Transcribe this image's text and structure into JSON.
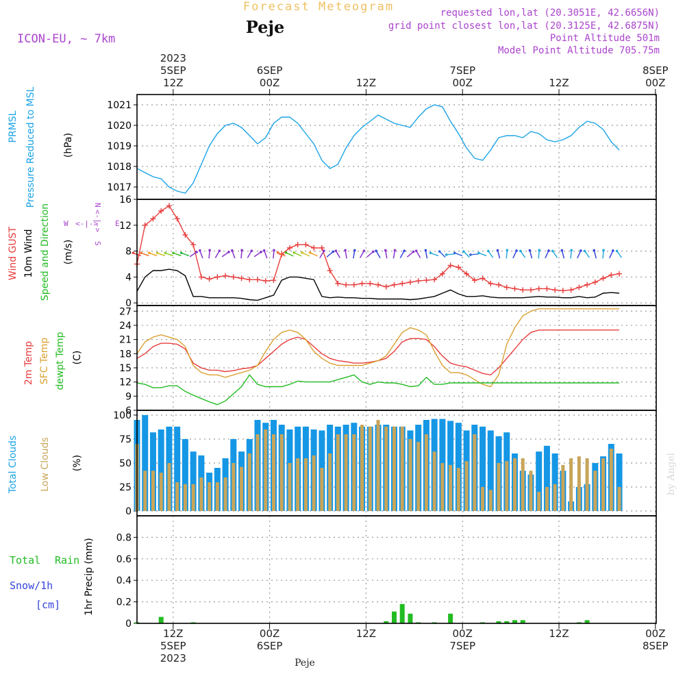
{
  "header": {
    "super_title": "Forecast Meteogram",
    "location": "Peje",
    "model": "ICON-EU, ~ 7km",
    "requested": "requested lon,lat (20.3051E, 42.6656N)",
    "grid_point": "grid point closest lon,lat (20.3125E, 42.6875N)",
    "point_alt": "Point Altitude 501m",
    "model_alt": "Model Point Altitude 705.75m",
    "footer_location": "Peje",
    "credit": "by Angel"
  },
  "time_axis": {
    "hours_start": 0,
    "hours_end": 60,
    "ticks": [
      {
        "hour": 4.5,
        "top": [
          "2023",
          "5SEP",
          "12Z"
        ],
        "bottom": [
          "12Z",
          "5SEP",
          "2023"
        ]
      },
      {
        "hour": 16.5,
        "top": [
          "6SEP",
          "00Z"
        ],
        "bottom": [
          "00Z",
          "6SEP"
        ]
      },
      {
        "hour": 28.5,
        "top": [
          "12Z"
        ],
        "bottom": [
          "12Z"
        ]
      },
      {
        "hour": 40.5,
        "top": [
          "7SEP",
          "00Z"
        ],
        "bottom": [
          "00Z",
          "7SEP"
        ]
      },
      {
        "hour": 52.5,
        "top": [
          "12Z"
        ],
        "bottom": [
          "12Z"
        ]
      },
      {
        "hour": 64.5,
        "top": [
          "8SEP",
          "00Z"
        ],
        "bottom": [
          "00Z",
          "8SEP"
        ]
      }
    ]
  },
  "labels": {
    "p_prmsl": "PRMSL",
    "p_pressure": "Pressure Reduced to MSL",
    "p_unit": "(hPa)",
    "w_gust": "Wind GUST",
    "w_10m": "10m Wind",
    "w_speed": "Speed and Direction",
    "w_unit": "(m/s)",
    "compass_w": "W",
    "compass_e": "E",
    "compass_n": "N",
    "compass_s": "S",
    "t_2m": "2m Temp",
    "t_sfc": "SFC Temp",
    "t_dew": "dewpt Temp",
    "t_unit": "(C)",
    "c_total": "Total Clouds",
    "c_low": "Low Clouds",
    "c_unit": "(%)",
    "r_total": "Total",
    "r_rain": "Rain",
    "r_snow": "Snow/1h",
    "r_cm": "[cm]",
    "r_unit": "1hr Precip (mm)"
  },
  "colors": {
    "pressure": "#1aa3e6",
    "gust": "#e83c3c",
    "wind": "#000000",
    "t2m": "#e83c3c",
    "sfc": "#daa030",
    "dew": "#22bb22",
    "total_cloud": "#1597e5",
    "low_cloud": "#c8a55a",
    "rain": "#22bb22",
    "snow": "#3344dd",
    "header_purple": "#aa44cc",
    "super_title": "#f0c060"
  },
  "chart_data": [
    {
      "type": "line",
      "title": "PRMSL Pressure Reduced to MSL",
      "ylabel": "(hPa)",
      "ylim": [
        1016.4,
        1021.5
      ],
      "yticks": [
        1017,
        1018,
        1019,
        1020,
        1021
      ],
      "x_hours": [
        0,
        1,
        2,
        3,
        4,
        5,
        6,
        7,
        8,
        9,
        10,
        11,
        12,
        13,
        14,
        15,
        16,
        17,
        18,
        19,
        20,
        21,
        22,
        23,
        24,
        25,
        26,
        27,
        28,
        29,
        30,
        31,
        32,
        33,
        34,
        35,
        36,
        37,
        38,
        39,
        40,
        41,
        42,
        43,
        44,
        45,
        46,
        47,
        48,
        49,
        50,
        51,
        52,
        53,
        54,
        55,
        56,
        57,
        58,
        59,
        60
      ],
      "series": [
        {
          "values": [
            1017.9,
            1017.7,
            1017.5,
            1017.4,
            1017.0,
            1016.8,
            1016.7,
            1017.2,
            1018.1,
            1019.0,
            1019.6,
            1020.0,
            1020.1,
            1019.9,
            1019.5,
            1019.1,
            1019.4,
            1020.1,
            1020.4,
            1020.4,
            1020.1,
            1019.6,
            1019.1,
            1018.3,
            1017.9,
            1018.1,
            1018.9,
            1019.5,
            1019.9,
            1020.2,
            1020.5,
            1020.3,
            1020.1,
            1020.0,
            1019.9,
            1020.4,
            1020.8,
            1021.0,
            1020.9,
            1020.2,
            1019.6,
            1018.9,
            1018.4,
            1018.3,
            1018.8,
            1019.4,
            1019.5,
            1019.5,
            1019.4,
            1019.7,
            1019.6,
            1019.3,
            1019.2,
            1019.3,
            1019.5,
            1019.9,
            1020.2,
            1020.1,
            1019.8,
            1019.2,
            1018.8
          ]
        }
      ]
    },
    {
      "type": "line",
      "title": "Wind GUST / 10m Wind Speed and Direction",
      "ylabel": "(m/s)",
      "ylim": [
        -0.4,
        16
      ],
      "yticks": [
        0,
        4,
        8,
        12,
        16
      ],
      "x_hours": [
        0,
        1,
        2,
        3,
        4,
        5,
        6,
        7,
        8,
        9,
        10,
        11,
        12,
        13,
        14,
        15,
        16,
        17,
        18,
        19,
        20,
        21,
        22,
        23,
        24,
        25,
        26,
        27,
        28,
        29,
        30,
        31,
        32,
        33,
        34,
        35,
        36,
        37,
        38,
        39,
        40,
        41,
        42,
        43,
        44,
        45,
        46,
        47,
        48,
        49,
        50,
        51,
        52,
        53,
        54,
        55,
        56,
        57,
        58,
        59,
        60
      ],
      "series": [
        {
          "name": "Wind GUST",
          "values": [
            6.0,
            12.0,
            13.0,
            14.2,
            15.0,
            13.0,
            10.5,
            9.0,
            4.0,
            3.7,
            4.0,
            4.2,
            4.0,
            3.8,
            3.6,
            3.6,
            3.4,
            3.5,
            7.5,
            8.5,
            9.0,
            9.0,
            8.5,
            8.5,
            5.0,
            3.0,
            2.8,
            2.8,
            3.0,
            3.0,
            2.8,
            2.5,
            2.8,
            3.0,
            3.2,
            3.4,
            3.5,
            3.6,
            4.5,
            5.8,
            5.5,
            4.5,
            3.5,
            3.8,
            3.0,
            2.8,
            2.4,
            2.2,
            2.0,
            2.0,
            2.2,
            2.2,
            2.0,
            1.9,
            2.0,
            2.4,
            2.8,
            3.2,
            3.8,
            4.3,
            4.5
          ]
        },
        {
          "name": "10m Wind",
          "values": [
            1.8,
            4.0,
            5.0,
            5.0,
            5.2,
            5.0,
            4.2,
            1.0,
            1.0,
            0.8,
            0.8,
            0.8,
            0.8,
            0.7,
            0.5,
            0.4,
            0.8,
            1.2,
            3.5,
            4.0,
            4.0,
            3.8,
            3.6,
            1.0,
            0.8,
            0.9,
            0.8,
            0.8,
            0.7,
            0.7,
            0.6,
            0.6,
            0.6,
            0.6,
            0.5,
            0.6,
            0.8,
            1.0,
            1.5,
            2.0,
            1.4,
            1.0,
            1.0,
            1.1,
            0.9,
            0.8,
            0.8,
            0.8,
            0.8,
            0.9,
            1.0,
            0.9,
            0.9,
            0.8,
            0.8,
            1.0,
            0.8,
            0.9,
            1.5,
            1.6,
            1.5
          ]
        }
      ]
    },
    {
      "type": "line",
      "title": "2m Temp / SFC Temp / dewpt Temp",
      "ylabel": "(C)",
      "ylim": [
        6,
        28.2
      ],
      "yticks": [
        6,
        9,
        12,
        15,
        18,
        21,
        24,
        27
      ],
      "x_hours": [
        0,
        1,
        2,
        3,
        4,
        5,
        6,
        7,
        8,
        9,
        10,
        11,
        12,
        13,
        14,
        15,
        16,
        17,
        18,
        19,
        20,
        21,
        22,
        23,
        24,
        25,
        26,
        27,
        28,
        29,
        30,
        31,
        32,
        33,
        34,
        35,
        36,
        37,
        38,
        39,
        40,
        41,
        42,
        43,
        44,
        45,
        46,
        47,
        48,
        49,
        50,
        51,
        52,
        53,
        54,
        55,
        56,
        57,
        58,
        59,
        60
      ],
      "series": [
        {
          "name": "2m Temp",
          "values": [
            17.0,
            18.0,
            19.5,
            20.2,
            20.2,
            20.0,
            19.0,
            16.0,
            15.0,
            14.5,
            14.5,
            14.2,
            14.4,
            14.8,
            15.0,
            15.5,
            17.0,
            18.5,
            20.0,
            21.0,
            21.5,
            21.0,
            19.5,
            18.0,
            17.0,
            16.5,
            16.3,
            16.0,
            16.0,
            16.2,
            16.5,
            17.0,
            18.5,
            20.5,
            21.2,
            21.2,
            21.0,
            19.5,
            17.5,
            16.0,
            15.5,
            15.2,
            14.5,
            13.8,
            13.5,
            15.0,
            17.0,
            19.0,
            21.0,
            22.5,
            23.0,
            23.0,
            23.0,
            23.0,
            23.0,
            23.0,
            23.0,
            23.0,
            23.0,
            23.0,
            23.0
          ]
        },
        {
          "name": "SFC Temp",
          "values": [
            18.0,
            20.5,
            21.5,
            22.0,
            21.5,
            21.0,
            19.5,
            15.5,
            14.0,
            13.5,
            13.5,
            13.0,
            13.5,
            14.0,
            14.5,
            15.5,
            18.5,
            21.0,
            22.5,
            23.0,
            22.5,
            21.0,
            18.5,
            17.0,
            16.0,
            15.5,
            15.5,
            15.5,
            15.5,
            16.0,
            16.5,
            17.5,
            20.0,
            22.5,
            23.5,
            23.0,
            22.0,
            18.5,
            15.5,
            14.0,
            14.0,
            13.5,
            12.5,
            11.5,
            11.0,
            13.5,
            20.0,
            23.5,
            26.0,
            27.0,
            27.5,
            27.5,
            27.5,
            27.5,
            27.5,
            27.5,
            27.5,
            27.5,
            27.5,
            27.5,
            27.5
          ]
        },
        {
          "name": "dewpt Temp",
          "values": [
            11.8,
            11.5,
            10.8,
            10.8,
            11.2,
            11.2,
            10.0,
            9.2,
            8.5,
            7.8,
            7.2,
            8.0,
            9.5,
            11.0,
            13.5,
            11.5,
            11.0,
            11.0,
            11.0,
            11.5,
            12.2,
            12.0,
            12.0,
            12.0,
            12.0,
            12.5,
            13.0,
            13.5,
            12.0,
            11.5,
            12.0,
            11.8,
            11.8,
            11.5,
            11.0,
            11.2,
            13.0,
            11.5,
            11.5,
            11.8,
            11.8,
            11.8,
            11.8,
            11.8,
            11.8,
            11.8,
            11.8,
            11.8,
            11.8,
            11.8,
            11.8,
            11.8,
            11.8,
            11.8,
            11.8,
            11.8,
            11.8,
            11.8,
            11.8,
            11.8,
            11.8
          ]
        }
      ]
    },
    {
      "type": "bar",
      "title": "Total Clouds / Low Clouds",
      "ylabel": "(%)",
      "ylim": [
        -5,
        105
      ],
      "yticks": [
        0,
        25,
        50,
        75,
        100
      ],
      "x_hours": [
        0,
        1,
        2,
        3,
        4,
        5,
        6,
        7,
        8,
        9,
        10,
        11,
        12,
        13,
        14,
        15,
        16,
        17,
        18,
        19,
        20,
        21,
        22,
        23,
        24,
        25,
        26,
        27,
        28,
        29,
        30,
        31,
        32,
        33,
        34,
        35,
        36,
        37,
        38,
        39,
        40,
        41,
        42,
        43,
        44,
        45,
        46,
        47,
        48,
        49,
        50,
        51,
        52,
        53,
        54,
        55,
        56,
        57,
        58,
        59,
        60
      ],
      "series": [
        {
          "name": "Total Clouds",
          "values": [
            95,
            100,
            82,
            85,
            88,
            88,
            75,
            62,
            58,
            40,
            45,
            55,
            75,
            62,
            75,
            95,
            92,
            95,
            90,
            85,
            88,
            88,
            85,
            84,
            90,
            88,
            90,
            92,
            88,
            88,
            90,
            90,
            88,
            88,
            84,
            90,
            95,
            96,
            96,
            94,
            92,
            84,
            90,
            88,
            84,
            78,
            82,
            60,
            42,
            38,
            62,
            68,
            60,
            42,
            10,
            25,
            28,
            50,
            57,
            70,
            60
          ]
        },
        {
          "name": "Low Clouds",
          "values": [
            70,
            42,
            42,
            40,
            50,
            30,
            28,
            28,
            35,
            30,
            30,
            35,
            50,
            46,
            60,
            80,
            85,
            80,
            80,
            50,
            55,
            55,
            58,
            45,
            60,
            80,
            80,
            80,
            90,
            88,
            95,
            88,
            88,
            88,
            75,
            72,
            80,
            62,
            50,
            48,
            45,
            52,
            80,
            25,
            22,
            50,
            52,
            55,
            55,
            42,
            20,
            25,
            28,
            48,
            55,
            57,
            55,
            42,
            55,
            65,
            25
          ]
        }
      ]
    },
    {
      "type": "bar",
      "title": "1hr Precip (mm)",
      "ylabel": "1hr Precip (mm)",
      "ylim": [
        0,
        1.0
      ],
      "yticks": [
        0,
        0.2,
        0.4,
        0.6,
        0.8
      ],
      "x_hours": [
        0,
        3,
        7,
        31,
        32,
        33,
        34,
        35,
        37,
        39,
        43,
        45,
        46,
        47,
        48,
        55,
        56
      ],
      "series": [
        {
          "name": "Total Rain",
          "values": [
            0.01,
            0.06,
            0.01,
            0.02,
            0.11,
            0.18,
            0.09,
            0.01,
            0.01,
            0.09,
            0.01,
            0.02,
            0.02,
            0.03,
            0.03,
            0.01,
            0.03
          ]
        }
      ]
    }
  ]
}
